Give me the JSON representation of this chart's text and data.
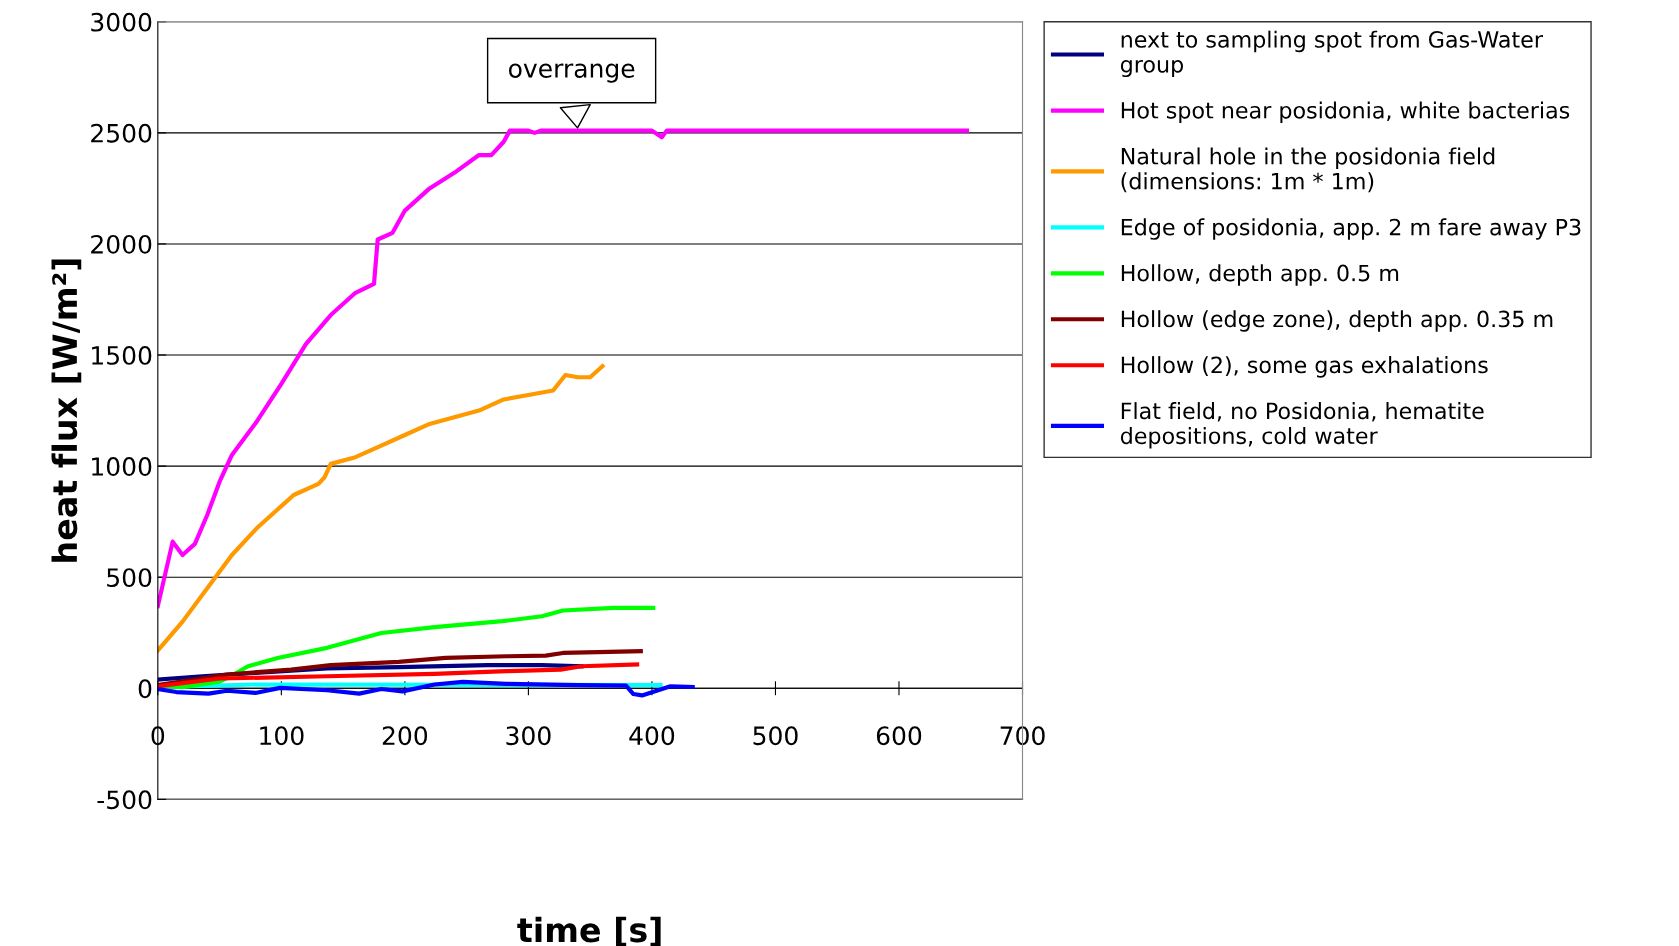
{
  "chart_data": {
    "type": "line",
    "xlabel": "time [s]",
    "ylabel": "heat flux [W/m²]",
    "xlim": [
      0,
      700
    ],
    "xticks": [
      0,
      100,
      200,
      300,
      400,
      500,
      600,
      700
    ],
    "ylim": [
      -500,
      3000
    ],
    "yticks": [
      -500,
      0,
      500,
      1000,
      1500,
      2000,
      2500,
      3000
    ],
    "grid": "y",
    "legend": "right",
    "marker": "none",
    "line_style": "solid",
    "annotations": [
      {
        "text": "overrange",
        "x": 340,
        "y": 2510
      }
    ],
    "series": [
      {
        "name": "next to sampling spot from Gas-Water group",
        "color": "#000080",
        "x": [
          0,
          36,
          79,
          137,
          195,
          267,
          311,
          343
        ],
        "values": [
          39,
          54,
          69,
          89,
          95,
          104,
          104,
          99
        ]
      },
      {
        "name": "Hot spot near posidonia, white bacterias",
        "color": "#ff00ff",
        "x": [
          0,
          12,
          20,
          30,
          40,
          50,
          60,
          80,
          100,
          120,
          140,
          160,
          175,
          178,
          190,
          200,
          220,
          240,
          260,
          270,
          280,
          285,
          300,
          305,
          310,
          400,
          408,
          412,
          655
        ],
        "values": [
          370,
          660,
          600,
          650,
          780,
          930,
          1050,
          1200,
          1370,
          1550,
          1680,
          1780,
          1820,
          2020,
          2050,
          2150,
          2250,
          2320,
          2400,
          2400,
          2460,
          2510,
          2510,
          2500,
          2510,
          2510,
          2480,
          2510,
          2510
        ]
      },
      {
        "name": "Natural hole in the posidonia field (dimensions: 1m * 1m)",
        "color": "#ff9900",
        "x": [
          0,
          20,
          40,
          60,
          80,
          100,
          110,
          130,
          135,
          140,
          160,
          180,
          200,
          220,
          240,
          260,
          280,
          300,
          320,
          330,
          340,
          350,
          360
        ],
        "values": [
          170,
          300,
          450,
          600,
          720,
          820,
          870,
          920,
          950,
          1010,
          1040,
          1090,
          1140,
          1190,
          1220,
          1250,
          1300,
          1320,
          1340,
          1410,
          1400,
          1400,
          1450
        ]
      },
      {
        "name": "Edge of posidonia, app. 2 m fare away P3",
        "color": "#00ffff",
        "x": [
          0,
          79,
          407
        ],
        "values": [
          5,
          17,
          14
        ]
      },
      {
        "name": "Hollow, depth app. 0.5 m",
        "color": "#00ff00",
        "x": [
          0,
          20,
          50,
          59,
          73,
          97,
          137,
          181,
          224,
          279,
          311,
          328,
          369,
          401
        ],
        "values": [
          10,
          5,
          30,
          54,
          99,
          136,
          182,
          249,
          275,
          302,
          324,
          350,
          362,
          362
        ]
      },
      {
        "name": "Hollow (edge zone), depth app. 0.35 m",
        "color": "#800000",
        "x": [
          0,
          56,
          108,
          140,
          195,
          233,
          282,
          314,
          328,
          391
        ],
        "values": [
          14,
          62,
          84,
          104,
          119,
          137,
          144,
          147,
          159,
          167
        ]
      },
      {
        "name": "Hollow (2), some gas exhalations",
        "color": "#ff0000",
        "x": [
          0,
          50,
          137,
          224,
          282,
          326,
          343,
          388
        ],
        "values": [
          9,
          44,
          54,
          65,
          77,
          84,
          99,
          107
        ]
      },
      {
        "name": "Flat field, no Posidonia, hematite depositions, cold water",
        "color": "#0000ff",
        "x": [
          0,
          15,
          41,
          56,
          79,
          99,
          137,
          163,
          181,
          198,
          224,
          247,
          282,
          340,
          379,
          385,
          392,
          415,
          433
        ],
        "values": [
          -3,
          -17,
          -24,
          -11,
          -21,
          2,
          -9,
          -24,
          -3,
          -14,
          17,
          29,
          20,
          14,
          12,
          -26,
          -32,
          9,
          6
        ]
      }
    ]
  }
}
